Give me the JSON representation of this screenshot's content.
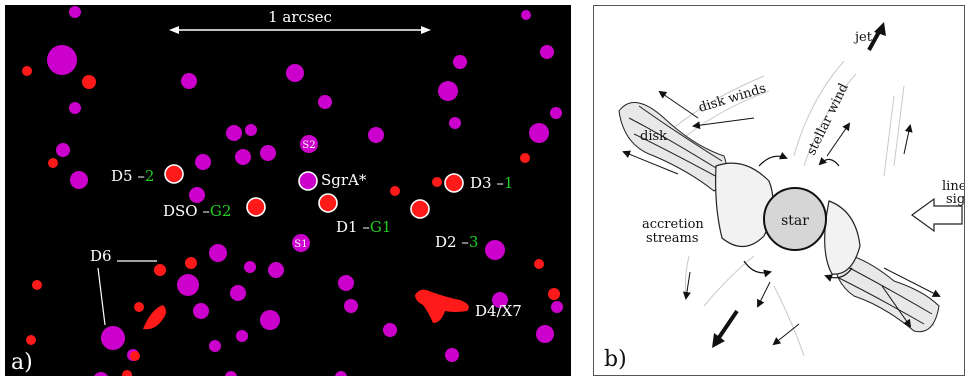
{
  "panel_a": {
    "letter": "a)",
    "scale_label": "1 arcsec",
    "colors": {
      "background": "#000000",
      "star": "#cc00cc",
      "dusty": "#ff1a1a",
      "label": "#ffffff",
      "accent": "#22cc22"
    },
    "labels": {
      "sgra": "SgrA*",
      "s1": "S1",
      "s2": "S2",
      "d1_name": "D1 –",
      "d1_alt": "G1",
      "d2_name": "D2 –",
      "d2_alt": "3",
      "d3_name": "D3 –",
      "d3_alt": "1",
      "d5_name": "D5 –",
      "d5_alt": "2",
      "dso_name": "DSO –",
      "dso_alt": "G2",
      "d6": "D6",
      "d4x7": "D4/X7"
    }
  },
  "panel_b": {
    "letter": "b)",
    "labels": {
      "jet": "jet",
      "disk_winds": "disk winds",
      "disk": "disk",
      "stellar_wind": "stellar wind",
      "line_of_sight_1": "line of",
      "line_of_sight_2": "sight",
      "accretion_1": "accretion",
      "accretion_2": "streams",
      "star": "star"
    }
  }
}
